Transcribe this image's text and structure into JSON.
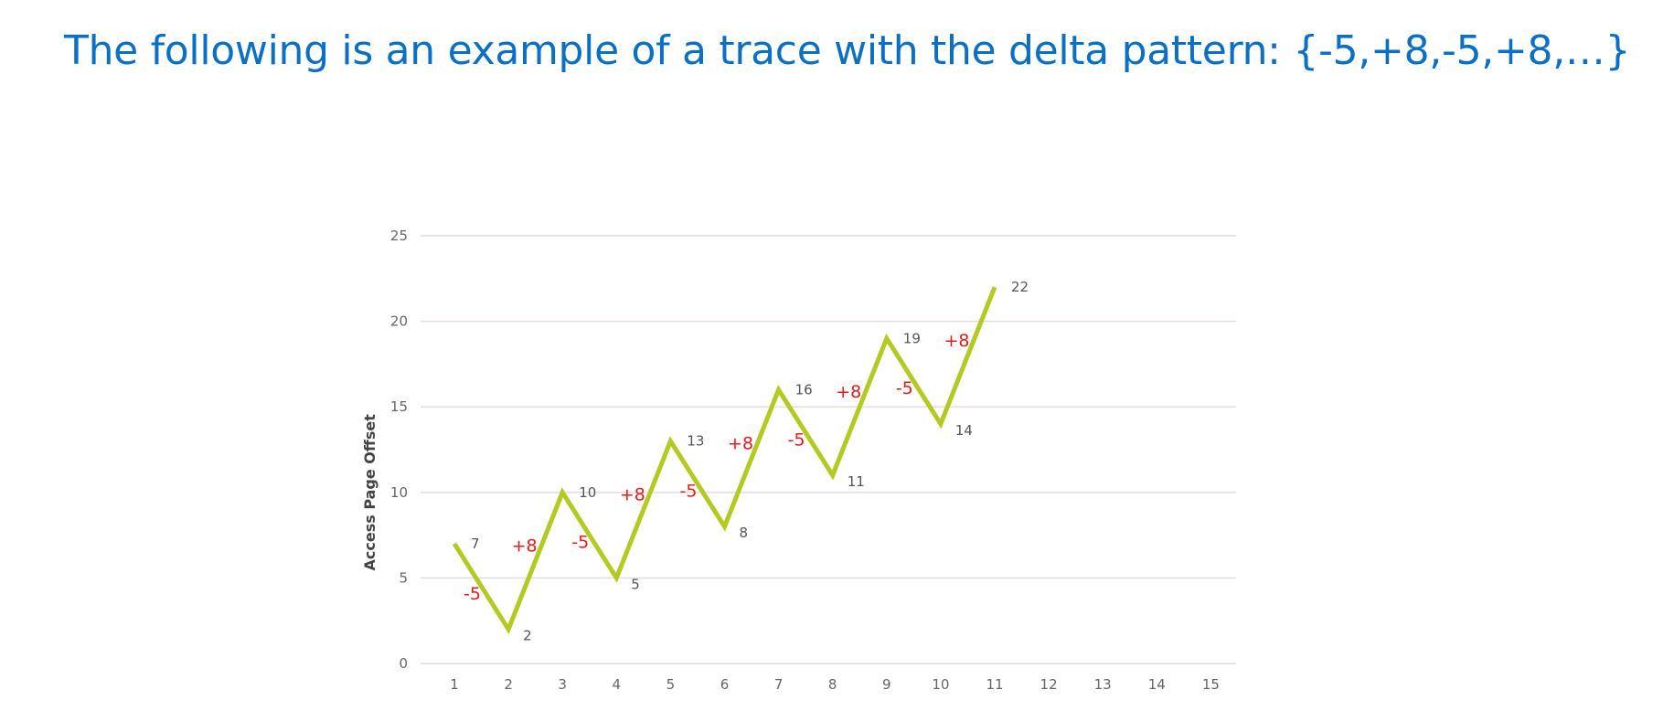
{
  "slide": {
    "title": "The following is an example of a trace with the delta pattern: {-5,+8,-5,+8,…}"
  },
  "colors": {
    "title": "#0b6fc4",
    "line": "#b5c923",
    "delta_labels": "#e21d1d",
    "gridlines": "#e4d7e6"
  },
  "chart_data": {
    "type": "line",
    "title": "",
    "xlabel": "",
    "ylabel": "Access Page Offset",
    "x_ticks": [
      1,
      2,
      3,
      4,
      5,
      6,
      7,
      8,
      9,
      10,
      11,
      12,
      13,
      14,
      15
    ],
    "y_ticks": [
      0,
      5,
      10,
      15,
      20,
      25
    ],
    "xlim": [
      1,
      15
    ],
    "ylim": [
      0,
      25
    ],
    "grid": "horizontal",
    "legend": "none",
    "series": [
      {
        "x": [
          1,
          2,
          3,
          4,
          5,
          6,
          7,
          8,
          9,
          10,
          11
        ],
        "values": [
          7,
          2,
          10,
          5,
          13,
          8,
          16,
          11,
          19,
          14,
          22
        ]
      }
    ],
    "point_labels": [
      "7",
      "2",
      "10",
      "5",
      "13",
      "8",
      "16",
      "11",
      "19",
      "14",
      "22"
    ],
    "delta_labels": [
      "-5",
      "+8",
      "-5",
      "+8",
      "-5",
      "+8",
      "-5",
      "+8",
      "-5",
      "+8"
    ]
  }
}
